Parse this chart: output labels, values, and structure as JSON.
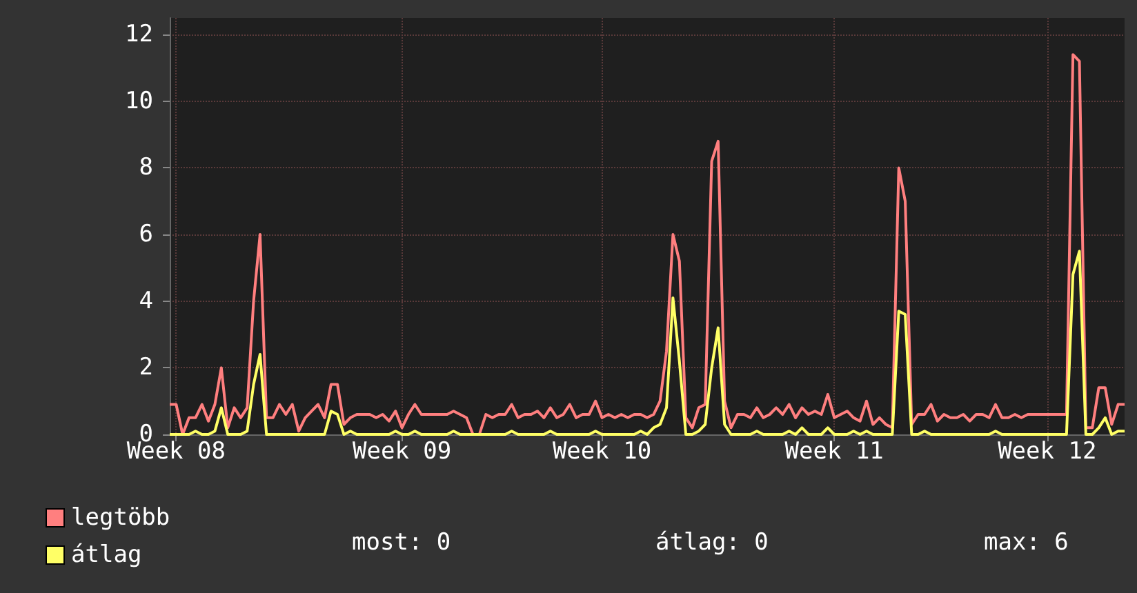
{
  "chart_data": {
    "type": "line",
    "categories": [
      null,
      "Week 08",
      null,
      null,
      null,
      null,
      null,
      null,
      null,
      null,
      null,
      null,
      null,
      null,
      null,
      null,
      null,
      null,
      null,
      null,
      null,
      null,
      null,
      null,
      null,
      null,
      null,
      null,
      null,
      null,
      null,
      null,
      null,
      null,
      null,
      null,
      "Week 09",
      null,
      null,
      null,
      null,
      null,
      null,
      null,
      null,
      null,
      null,
      null,
      null,
      null,
      null,
      null,
      null,
      null,
      null,
      null,
      null,
      null,
      null,
      null,
      null,
      null,
      null,
      null,
      null,
      null,
      null,
      "Week 10",
      null,
      null,
      null,
      null,
      null,
      null,
      null,
      null,
      null,
      null,
      null,
      null,
      null,
      null,
      null,
      null,
      null,
      null,
      null,
      null,
      null,
      null,
      null,
      null,
      null,
      null,
      null,
      null,
      null,
      null,
      null,
      null,
      null,
      null,
      null,
      "Week 11",
      null,
      null,
      null,
      null,
      null,
      null,
      null,
      null,
      null,
      null,
      null,
      null,
      null,
      null,
      null,
      null,
      null,
      null,
      null,
      null,
      null,
      null,
      null,
      null,
      null,
      null,
      null,
      null,
      null,
      null,
      null,
      null,
      "Week 12",
      null,
      null,
      null,
      null,
      null,
      null,
      null,
      null,
      null,
      null,
      null,
      null
    ],
    "series": [
      {
        "name": "legtöbb",
        "color": "#ff7f7f",
        "values": [
          0.9,
          0.9,
          0,
          0.5,
          0.5,
          0.9,
          0.4,
          0.9,
          2.0,
          0.2,
          0.8,
          0.5,
          0.8,
          4.0,
          6.0,
          0.5,
          0.5,
          0.9,
          0.6,
          0.9,
          0.1,
          0.5,
          0.7,
          0.9,
          0.5,
          1.5,
          1.5,
          0.3,
          0.5,
          0.6,
          0.6,
          0.6,
          0.5,
          0.6,
          0.4,
          0.7,
          0.2,
          0.6,
          0.9,
          0.6,
          0.6,
          0.6,
          0.6,
          0.6,
          0.7,
          0.6,
          0.5,
          0,
          0,
          0.6,
          0.5,
          0.6,
          0.6,
          0.9,
          0.5,
          0.6,
          0.6,
          0.7,
          0.5,
          0.8,
          0.5,
          0.6,
          0.9,
          0.5,
          0.6,
          0.6,
          1.0,
          0.5,
          0.6,
          0.5,
          0.6,
          0.5,
          0.6,
          0.6,
          0.5,
          0.6,
          1.0,
          2.5,
          6.0,
          5.2,
          0.5,
          0.2,
          0.8,
          0.9,
          8.2,
          8.8,
          1.0,
          0.2,
          0.6,
          0.6,
          0.5,
          0.8,
          0.5,
          0.6,
          0.8,
          0.6,
          0.9,
          0.5,
          0.8,
          0.6,
          0.7,
          0.6,
          1.2,
          0.5,
          0.6,
          0.7,
          0.5,
          0.4,
          1.0,
          0.3,
          0.5,
          0.3,
          0.2,
          8.0,
          7.0,
          0.3,
          0.6,
          0.6,
          0.9,
          0.4,
          0.6,
          0.5,
          0.5,
          0.6,
          0.4,
          0.6,
          0.6,
          0.5,
          0.9,
          0.5,
          0.5,
          0.6,
          0.5,
          0.6,
          0.6,
          0.6,
          0.6,
          0.6,
          0.6,
          0.6,
          11.4,
          11.2,
          0.2,
          0.2,
          1.4,
          1.4,
          0.3,
          0.9,
          0.9
        ]
      },
      {
        "name": "átlag",
        "color": "#ffff66",
        "values": [
          0,
          0,
          0,
          0,
          0.1,
          0,
          0,
          0.1,
          0.8,
          0,
          0,
          0,
          0.1,
          1.5,
          2.4,
          0,
          0,
          0,
          0,
          0,
          0,
          0,
          0,
          0,
          0,
          0.7,
          0.6,
          0,
          0.1,
          0,
          0,
          0,
          0,
          0,
          0,
          0.1,
          0,
          0,
          0.1,
          0,
          0,
          0,
          0,
          0,
          0.1,
          0,
          0,
          0,
          0,
          0,
          0,
          0,
          0,
          0.1,
          0,
          0,
          0,
          0,
          0,
          0.1,
          0,
          0,
          0,
          0,
          0,
          0,
          0.1,
          0,
          0,
          0,
          0,
          0,
          0,
          0.1,
          0,
          0.2,
          0.3,
          0.8,
          4.1,
          2.2,
          0,
          0,
          0.1,
          0.3,
          2.0,
          3.2,
          0.3,
          0,
          0,
          0,
          0,
          0.1,
          0,
          0,
          0,
          0,
          0.1,
          0,
          0.2,
          0,
          0,
          0,
          0.2,
          0,
          0,
          0,
          0.1,
          0,
          0.1,
          0,
          0,
          0,
          0,
          3.7,
          3.6,
          0,
          0,
          0.1,
          0,
          0,
          0,
          0,
          0,
          0,
          0,
          0,
          0,
          0,
          0.1,
          0,
          0,
          0,
          0,
          0,
          0,
          0,
          0,
          0,
          0,
          0,
          4.8,
          5.5,
          0,
          0,
          0.2,
          0.5,
          0,
          0.1,
          0.1
        ]
      }
    ],
    "ylim": [
      0,
      12.5
    ],
    "yticks": [
      0,
      2,
      4,
      6,
      8,
      10,
      12
    ],
    "grid": true,
    "legend": "bottom left",
    "marker": "none",
    "line_style": "solid",
    "annotations": [
      "most: 0",
      "átlag: 0",
      "max: 6"
    ]
  }
}
